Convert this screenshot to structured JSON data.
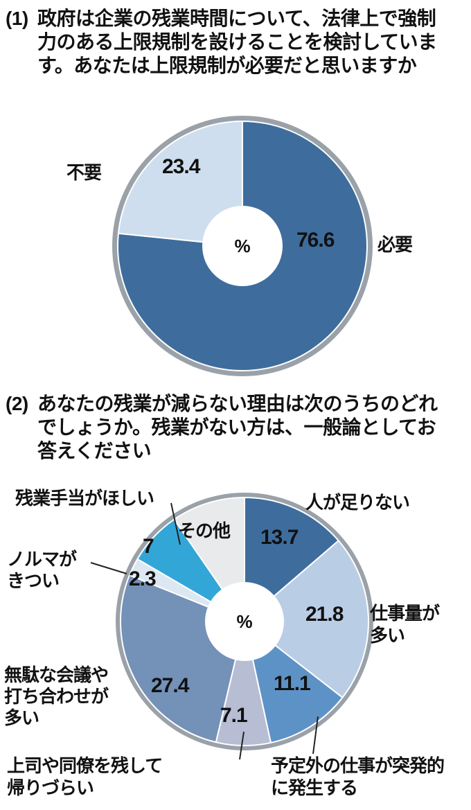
{
  "questions": [
    {
      "prefix": "(1)",
      "text": "政府は企業の残業時間について、法律上で強制力のある上限規制を設けることを検討しています。あなたは上限規制が必要だと思いますか"
    },
    {
      "prefix": "(2)",
      "text": "あなたの残業が減らない理由は次のうちのどれでしょうか。残業がない方は、一般論としてお答えください"
    }
  ],
  "chart_data": [
    {
      "type": "pie",
      "title": "政府は企業の残業時間について、法律上で強制力のある上限規制を設けることを検討しています。あなたは上限規制が必要だと思いますか",
      "unit": "%",
      "donut": true,
      "start_angle_deg": 0,
      "direction": "clockwise",
      "categories": [
        "必要",
        "不要"
      ],
      "values": [
        76.6,
        23.4
      ],
      "colors": [
        "#3e6d9d",
        "#cfdeee"
      ],
      "ring_color": "#9aa1a8"
    },
    {
      "type": "pie",
      "title": "あなたの残業が減らない理由は次のうちのどれでしょうか。残業がない方は、一般論としてお答えください",
      "unit": "%",
      "donut": true,
      "start_angle_deg": 0,
      "direction": "clockwise",
      "categories": [
        "人が足りない",
        "仕事量が多い",
        "予定外の仕事が突発的に発生する",
        "上司や同僚を残して帰りづらい",
        "無駄な会議や打ち合わせが多い",
        "ノルマがきつい",
        "残業手当がほしい",
        "その他"
      ],
      "values": [
        13.7,
        21.8,
        11.1,
        7.1,
        27.4,
        2.3,
        7,
        9.6
      ],
      "colors": [
        "#3e6d9d",
        "#b9cee5",
        "#5d92c6",
        "#b7bdd2",
        "#7491b8",
        "#dde7f1",
        "#33a6d8",
        "#e9eaeb"
      ],
      "ring_color": "#9aa1a8"
    }
  ]
}
